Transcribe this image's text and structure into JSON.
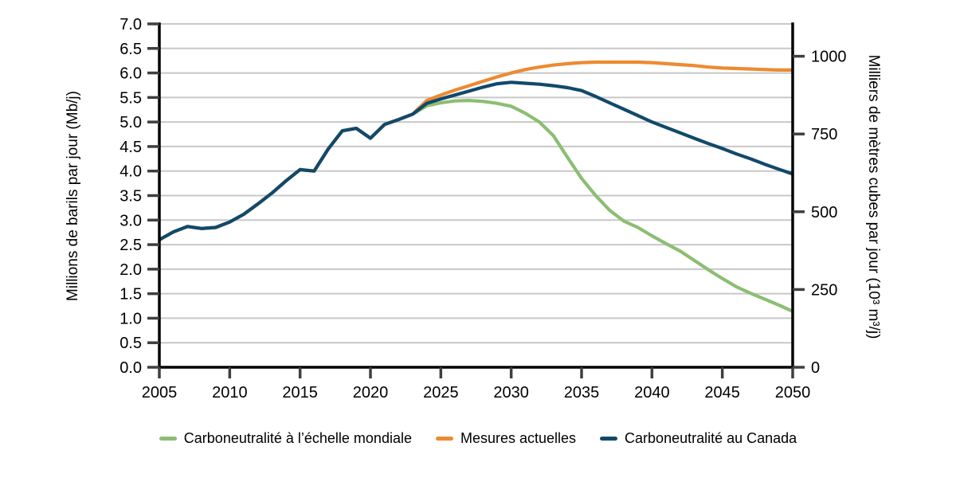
{
  "chart_data": {
    "type": "line",
    "title": "",
    "grid": "horizontal",
    "legend_position": "bottom-center",
    "x_axis": {
      "min": 2005,
      "max": 2050,
      "ticks": [
        2005,
        2010,
        2015,
        2020,
        2025,
        2030,
        2035,
        2040,
        2045,
        2050
      ]
    },
    "y_left": {
      "label": "Millions de barils par jour (Mb/j)",
      "min": 0,
      "max": 7,
      "tick_values": [
        0,
        0.5,
        1,
        1.5,
        2,
        2.5,
        3,
        3.5,
        4,
        4.5,
        5,
        5.5,
        6,
        6.5,
        7
      ],
      "tick_labels": [
        "0.0",
        "0.5",
        "1.0",
        "1.5",
        "2.0",
        "2.5",
        "3.0",
        "3.5",
        "4.0",
        "4.5",
        "5.0",
        "5.5",
        "6.0",
        "6.5",
        "7.0"
      ]
    },
    "y_right": {
      "label": "Milliers de mètres cubes par jour (10³ m³/j)",
      "min": 0,
      "axis_max": 1104,
      "ticks": [
        0,
        250,
        500,
        750,
        1000
      ]
    },
    "series": [
      {
        "id": "global-net-zero",
        "name": "Carboneutralité à l’échelle mondiale",
        "color": "#8cbe72",
        "x": [
          2005,
          2006,
          2007,
          2008,
          2009,
          2010,
          2011,
          2012,
          2013,
          2014,
          2015,
          2016,
          2017,
          2018,
          2019,
          2020,
          2021,
          2022,
          2023,
          2024,
          2025,
          2026,
          2027,
          2028,
          2029,
          2030,
          2031,
          2032,
          2033,
          2034,
          2035,
          2036,
          2037,
          2038,
          2039,
          2040,
          2041,
          2042,
          2043,
          2044,
          2045,
          2046,
          2047,
          2048,
          2049,
          2050
        ],
        "y": [
          2.6,
          2.76,
          2.87,
          2.83,
          2.85,
          2.96,
          3.12,
          3.33,
          3.55,
          3.8,
          4.03,
          4.0,
          4.45,
          4.82,
          4.87,
          4.67,
          4.95,
          5.05,
          5.16,
          5.33,
          5.39,
          5.43,
          5.44,
          5.42,
          5.38,
          5.32,
          5.18,
          5.0,
          4.72,
          4.28,
          3.85,
          3.5,
          3.2,
          2.98,
          2.85,
          2.68,
          2.52,
          2.37,
          2.18,
          1.99,
          1.81,
          1.64,
          1.51,
          1.39,
          1.27,
          1.14
        ]
      },
      {
        "id": "current-measures",
        "name": "Mesures actuelles",
        "color": "#ed8a33",
        "x": [
          2005,
          2006,
          2007,
          2008,
          2009,
          2010,
          2011,
          2012,
          2013,
          2014,
          2015,
          2016,
          2017,
          2018,
          2019,
          2020,
          2021,
          2022,
          2023,
          2024,
          2025,
          2026,
          2027,
          2028,
          2029,
          2030,
          2031,
          2032,
          2033,
          2034,
          2035,
          2036,
          2037,
          2038,
          2039,
          2040,
          2041,
          2042,
          2043,
          2044,
          2045,
          2046,
          2047,
          2048,
          2049,
          2050
        ],
        "y": [
          2.6,
          2.76,
          2.87,
          2.83,
          2.85,
          2.96,
          3.12,
          3.33,
          3.55,
          3.8,
          4.03,
          4.0,
          4.45,
          4.82,
          4.87,
          4.67,
          4.95,
          5.05,
          5.16,
          5.44,
          5.55,
          5.65,
          5.74,
          5.83,
          5.92,
          6.0,
          6.07,
          6.12,
          6.16,
          6.19,
          6.21,
          6.22,
          6.22,
          6.22,
          6.22,
          6.21,
          6.19,
          6.17,
          6.15,
          6.12,
          6.1,
          6.09,
          6.08,
          6.07,
          6.06,
          6.06
        ]
      },
      {
        "id": "canada-net-zero",
        "name": "Carboneutralité au Canada",
        "color": "#11496b",
        "x": [
          2005,
          2006,
          2007,
          2008,
          2009,
          2010,
          2011,
          2012,
          2013,
          2014,
          2015,
          2016,
          2017,
          2018,
          2019,
          2020,
          2021,
          2022,
          2023,
          2024,
          2025,
          2026,
          2027,
          2028,
          2029,
          2030,
          2031,
          2032,
          2033,
          2034,
          2035,
          2036,
          2037,
          2038,
          2039,
          2040,
          2041,
          2042,
          2043,
          2044,
          2045,
          2046,
          2047,
          2048,
          2049,
          2050
        ],
        "y": [
          2.6,
          2.76,
          2.87,
          2.83,
          2.85,
          2.96,
          3.12,
          3.33,
          3.55,
          3.8,
          4.03,
          4.0,
          4.45,
          4.82,
          4.87,
          4.67,
          4.95,
          5.05,
          5.16,
          5.38,
          5.47,
          5.55,
          5.63,
          5.71,
          5.78,
          5.81,
          5.79,
          5.77,
          5.74,
          5.7,
          5.64,
          5.52,
          5.39,
          5.26,
          5.13,
          5.0,
          4.89,
          4.78,
          4.67,
          4.56,
          4.46,
          4.35,
          4.25,
          4.14,
          4.04,
          3.94
        ]
      }
    ],
    "style": {
      "grid_color": "#c8c8c8",
      "axis_color": "#000000",
      "tick_color": "#3f3f3f",
      "text_color": "#000000",
      "background": "#ffffff"
    }
  }
}
